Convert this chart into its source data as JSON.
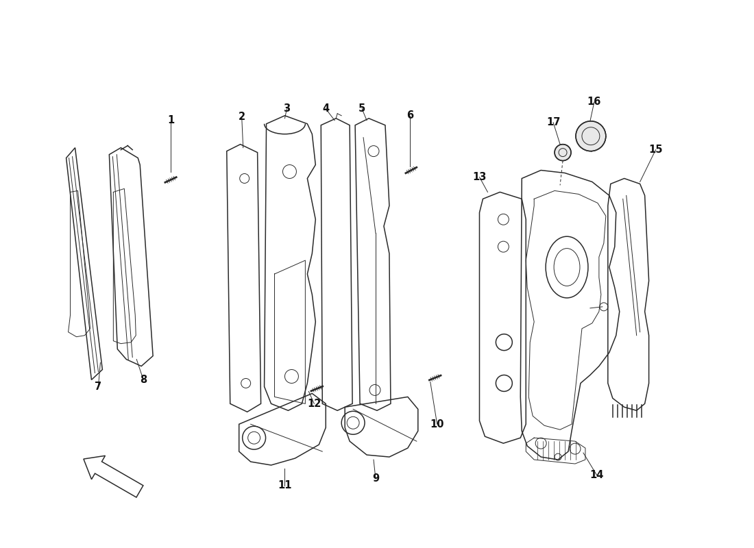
{
  "background_color": "#ffffff",
  "line_color": "#2a2a2a",
  "label_color": "#111111",
  "label_fontsize": 10.5,
  "figsize": [
    11.0,
    8.0
  ],
  "dpi": 100
}
